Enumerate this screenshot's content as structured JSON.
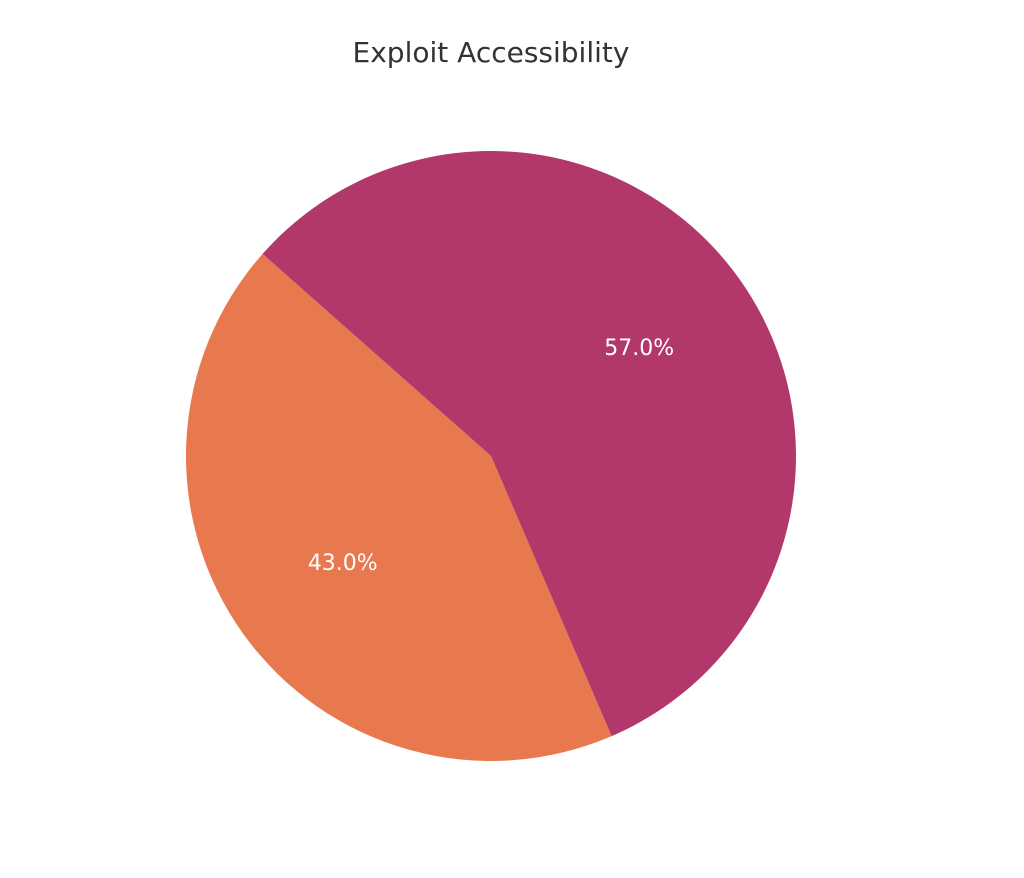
{
  "chart_data": {
    "type": "pie",
    "title": "Exploit Accessibility",
    "slices": [
      {
        "value": 43.0,
        "label": "43.0%",
        "color": "#e8794e"
      },
      {
        "value": 57.0,
        "label": "57.0%",
        "color": "#b2386b"
      }
    ],
    "start_angle_deg": 138.5,
    "direction": "counterclockwise",
    "legend": "none"
  }
}
